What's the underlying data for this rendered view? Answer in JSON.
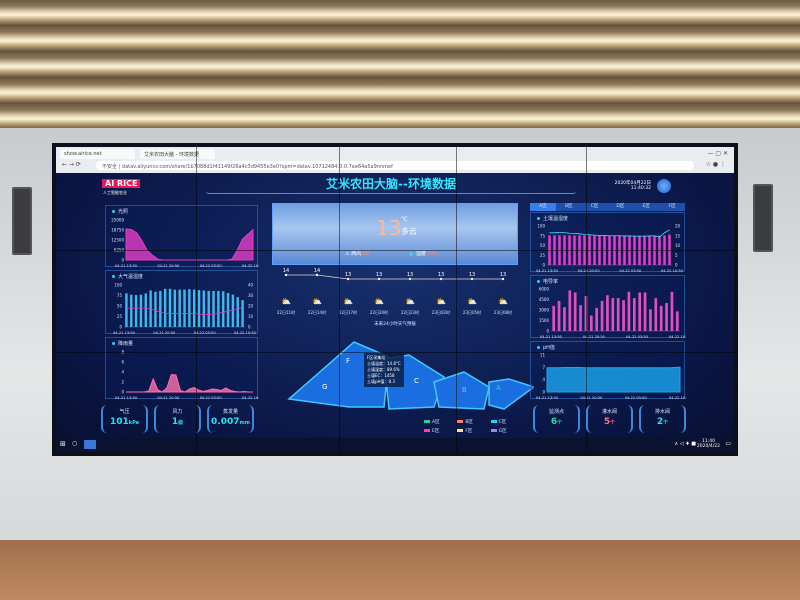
{
  "browser": {
    "tabs": [
      "show.airice.net",
      "艾米农田大脑 - 环境数据"
    ],
    "url_prefix": "不安全",
    "url": "datav.aliyuncs.com/share/1b7088d1f41149f26a4c3d9455e3e0?spm=datav.10712484.0.0.7ee64a5a9nnmef"
  },
  "header": {
    "logo": "AI RICE",
    "logo_sub": "人工智能农业",
    "title": "艾米农田大脑--环境数据",
    "date": "2020年04月22日",
    "time": "11:40:32"
  },
  "colors": {
    "accent": "#23d3f0",
    "magenta": "#e63cc8",
    "pink": "#ff6fb0",
    "title": "#35e6ff"
  },
  "light": {
    "title": "光照",
    "unit": "lux",
    "yticks": [
      "25000",
      "18750",
      "12500",
      "6250",
      "0"
    ],
    "xticks": [
      "04-21 13:50",
      "04-21 20:50",
      "04-22 03:50",
      "04-22 10:50"
    ],
    "values": [
      19500,
      19000,
      17000,
      12000,
      6000,
      3000,
      500,
      0,
      0,
      0,
      0,
      0,
      0,
      0,
      0,
      0,
      0,
      0,
      0,
      0,
      500,
      6000,
      13000,
      16000,
      19000
    ]
  },
  "air": {
    "title": "大气温湿度",
    "legend": [
      "湿度",
      "温度"
    ],
    "yleft_unit": "%",
    "yright_unit": "℃",
    "yleft": [
      "100",
      "75",
      "50",
      "25",
      "0"
    ],
    "yright": [
      "40",
      "30",
      "20",
      "10",
      "0"
    ],
    "xticks": [
      "04-21 13:50",
      "04-21 20:50",
      "04-22 03:50",
      "04-22 10:50"
    ],
    "humidity": [
      80,
      77,
      76,
      77,
      80,
      87,
      84,
      86,
      91,
      91,
      89,
      89,
      89,
      90,
      89,
      88,
      87,
      86,
      86,
      86,
      85,
      81,
      77,
      71,
      64
    ],
    "temperature": [
      18,
      18,
      18,
      18,
      18,
      17,
      16,
      14,
      13,
      13,
      13,
      13,
      13,
      13,
      13,
      12,
      12,
      12,
      12,
      13,
      14,
      15,
      16,
      17,
      19
    ]
  },
  "rain": {
    "title": "降雨量",
    "unit": "mm",
    "yticks": [
      "8",
      "6",
      "4",
      "2",
      "0"
    ],
    "xticks": [
      "04-21 13:50",
      "04-21 20:50",
      "04-22 03:50",
      "04-22 10:50"
    ],
    "values": [
      0,
      0,
      0,
      0,
      0,
      0.2,
      2.6,
      0.4,
      0,
      0.8,
      3.5,
      3.4,
      0.3,
      0,
      0.6,
      0.9,
      0.4,
      0.1,
      0.3,
      0.6,
      0.5,
      0.3,
      0.8,
      0.3,
      0.1,
      0,
      0.1,
      0,
      0
    ]
  },
  "stats_left": [
    {
      "label": "气压",
      "value": "101",
      "unit": "kPa"
    },
    {
      "label": "风力",
      "value": "1",
      "unit": "级"
    },
    {
      "label": "蒸发量",
      "value": "0.007",
      "unit": "mm"
    }
  ],
  "weather": {
    "temp": "13",
    "unit": "℃",
    "desc": "多云",
    "wind_label": "西风",
    "wind_value": "1级",
    "humidity_label": "湿度",
    "humidity_value": "89%",
    "forecast_temps": [
      14,
      14,
      13,
      13,
      13,
      13,
      13,
      13
    ],
    "forecast_labels": [
      "14",
      "14",
      "13",
      "13",
      "13",
      "13",
      "13",
      "13"
    ],
    "forecast_times": [
      "22日11时",
      "22日14时",
      "22日17时",
      "22日20时",
      "22日23时",
      "23日02时",
      "23日05时",
      "23日08时"
    ],
    "forecast_icon": "partly-cloudy-icon",
    "caption": "未来24小时天气预报"
  },
  "map": {
    "zones": [
      "A",
      "B",
      "C",
      "F",
      "G"
    ],
    "tooltip": {
      "title": "F区采集站",
      "lines": [
        "土壤温度：14.8°C",
        "土壤湿度：89.6%",
        "土壤EC：1458",
        "土壤pH值：8.3"
      ]
    },
    "legend": [
      {
        "label": "A区",
        "color": "#22d39a"
      },
      {
        "label": "B区",
        "color": "#ff7a7a"
      },
      {
        "label": "C区",
        "color": "#23d3f0"
      },
      {
        "label": "E区",
        "color": "#ff3fa8"
      },
      {
        "label": "F区",
        "color": "#ffe08a"
      },
      {
        "label": "G区",
        "color": "#8a8cff"
      }
    ]
  },
  "zone_tabs": [
    "A区",
    "B区",
    "C区",
    "D区",
    "E区",
    "F区"
  ],
  "soil": {
    "title": "土壤温湿度",
    "legend": [
      "湿度",
      "温度"
    ],
    "yleft_unit": "%",
    "yright_unit": "℃",
    "yleft": [
      "100",
      "75",
      "50",
      "25",
      "0"
    ],
    "yright": [
      "20",
      "15",
      "10",
      "5",
      "0"
    ],
    "xticks": [
      "04-21 13:50",
      "04-21 20:50",
      "04-22 03:50",
      "04-22 10:50"
    ],
    "humidity": [
      76,
      76,
      76,
      76,
      76,
      76,
      76,
      76,
      76,
      75,
      75,
      75,
      75,
      75,
      75,
      75,
      75,
      75,
      75,
      75,
      75,
      75,
      75,
      76,
      78
    ],
    "temperature": [
      16.5,
      16.5,
      16.8,
      16.6,
      16.3,
      16.2,
      16,
      15.7,
      15.5,
      15.3,
      15.2,
      15.1,
      15,
      15,
      15,
      14.9,
      14.9,
      14.8,
      14.8,
      14.8,
      14.9,
      15,
      14.4,
      16.5,
      18
    ]
  },
  "ec": {
    "title": "电导率",
    "unit": "us/cm",
    "yticks": [
      "6000",
      "4500",
      "3000",
      "1500",
      "0"
    ],
    "xticks": [
      "04-21 13:50",
      "04-21 20:50",
      "04-22 03:50",
      "04-22 10:50"
    ],
    "values": [
      3600,
      4300,
      3400,
      5800,
      5500,
      3700,
      5000,
      2200,
      3300,
      4300,
      5100,
      4700,
      4700,
      4400,
      5600,
      4700,
      5500,
      5500,
      3100,
      4700,
      3600,
      4000,
      5600,
      2800
    ]
  },
  "ph": {
    "title": "pH值",
    "yticks": [
      "11",
      "7",
      "4",
      "0"
    ],
    "xticks": [
      "04-21 13:50",
      "04-21 20:50",
      "04-22 03:50",
      "04-22 10:50"
    ],
    "values": [
      7.2,
      7.2,
      7.2,
      7.3,
      7.3,
      7.3,
      7.3,
      7.2,
      7.2,
      7.2,
      7.2,
      7.2,
      7.2,
      7.2,
      7.2,
      7.2,
      7.2,
      7.2,
      7.2,
      7.2,
      7.2,
      7.2,
      7.2,
      7.3,
      7.4
    ]
  },
  "stats_right": [
    {
      "label": "监测点",
      "value": "6",
      "unit": "个",
      "color": "#22e0a0"
    },
    {
      "label": "灌水阀",
      "value": "5",
      "unit": "个",
      "color": "#ff6f8a"
    },
    {
      "label": "排水阀",
      "value": "2",
      "unit": "个",
      "color": "#28e0f5"
    }
  ],
  "taskbar": {
    "time": "11:40",
    "date": "2020/4/22"
  }
}
